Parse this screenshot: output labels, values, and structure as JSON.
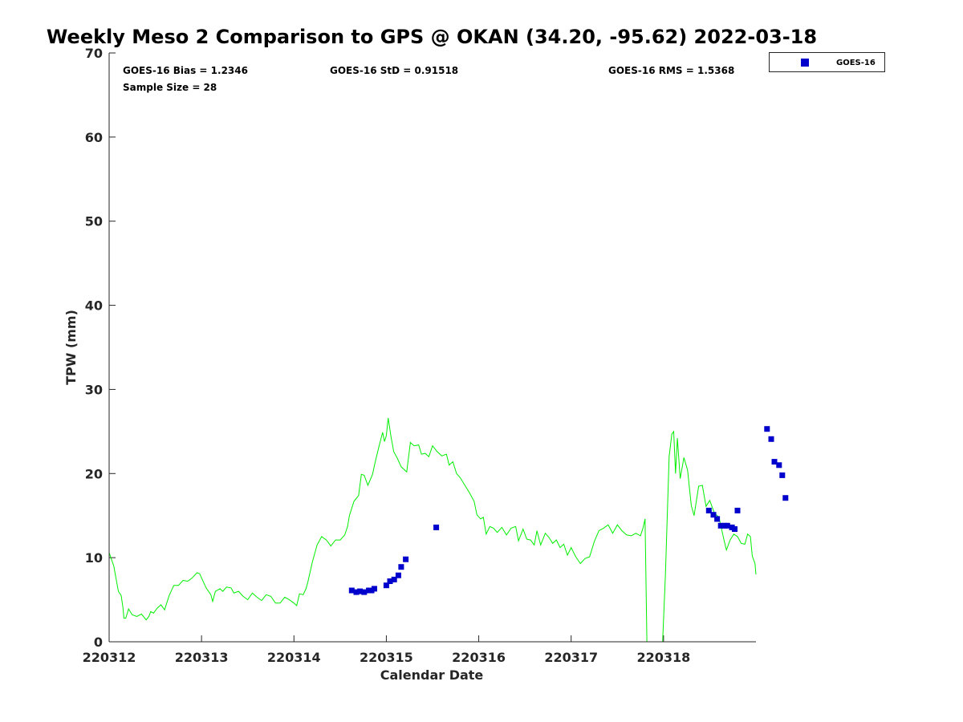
{
  "chart_data": {
    "type": "scatter",
    "title": "Weekly Meso 2 Comparison to GPS @ OKAN (34.20, -95.62) 2022-03-18",
    "xlabel": "Calendar Date",
    "ylabel": "TPW (mm)",
    "xlim": [
      "220312",
      "220319"
    ],
    "ylim": [
      0,
      70
    ],
    "yticks": [
      "0",
      "10",
      "20",
      "30",
      "40",
      "50",
      "60",
      "70"
    ],
    "xticks": [
      "220312",
      "220313",
      "220314",
      "220315",
      "220316",
      "220317",
      "220318"
    ],
    "grid": false,
    "legend_position": "top-right",
    "stats": {
      "bias": "GOES-16 Bias = 1.2346",
      "std": "GOES-16 StD = 0.91518",
      "rms": "GOES-16 RMS = 1.5368",
      "sample": "Sample Size = 28"
    },
    "series": [
      {
        "name": "GOES-16",
        "kind": "scatter",
        "color": "#0000cc",
        "marker": "square",
        "points": [
          [
            2.625,
            6.1
          ],
          [
            2.675,
            5.9
          ],
          [
            2.715,
            6.0
          ],
          [
            2.76,
            5.9
          ],
          [
            2.81,
            6.1
          ],
          [
            2.84,
            6.1
          ],
          [
            2.87,
            6.3
          ],
          [
            3.0,
            6.7
          ],
          [
            3.04,
            7.2
          ],
          [
            3.085,
            7.4
          ],
          [
            3.13,
            7.9
          ],
          [
            3.16,
            8.9
          ],
          [
            3.21,
            9.8
          ],
          [
            3.54,
            13.6
          ],
          [
            6.49,
            15.6
          ],
          [
            6.54,
            15.1
          ],
          [
            6.58,
            14.6
          ],
          [
            6.62,
            13.8
          ],
          [
            6.66,
            13.8
          ],
          [
            6.69,
            13.8
          ],
          [
            6.74,
            13.6
          ],
          [
            6.77,
            13.4
          ],
          [
            6.8,
            15.6
          ],
          [
            7.12,
            25.3
          ],
          [
            7.165,
            24.1
          ],
          [
            7.2,
            21.4
          ],
          [
            7.25,
            21.0
          ],
          [
            7.285,
            19.8
          ],
          [
            7.32,
            17.1
          ]
        ]
      },
      {
        "kind": "line",
        "color": "#00ee00",
        "points": [
          [
            0.0,
            10.6
          ],
          [
            0.05,
            9.0
          ],
          [
            0.1,
            6.0
          ],
          [
            0.13,
            5.5
          ],
          [
            0.15,
            4.0
          ],
          [
            0.16,
            2.8
          ],
          [
            0.18,
            2.8
          ],
          [
            0.21,
            3.9
          ],
          [
            0.25,
            3.2
          ],
          [
            0.3,
            3.0
          ],
          [
            0.35,
            3.3
          ],
          [
            0.4,
            2.6
          ],
          [
            0.43,
            3.0
          ],
          [
            0.45,
            3.6
          ],
          [
            0.48,
            3.4
          ],
          [
            0.52,
            4.0
          ],
          [
            0.56,
            4.4
          ],
          [
            0.6,
            3.8
          ],
          [
            0.65,
            5.5
          ],
          [
            0.7,
            6.7
          ],
          [
            0.75,
            6.7
          ],
          [
            0.8,
            7.3
          ],
          [
            0.85,
            7.2
          ],
          [
            0.9,
            7.6
          ],
          [
            0.95,
            8.2
          ],
          [
            0.98,
            8.1
          ],
          [
            1.0,
            7.6
          ],
          [
            1.05,
            6.4
          ],
          [
            1.1,
            5.6
          ],
          [
            1.12,
            4.8
          ],
          [
            1.15,
            6.0
          ],
          [
            1.2,
            6.3
          ],
          [
            1.23,
            6.0
          ],
          [
            1.27,
            6.5
          ],
          [
            1.32,
            6.4
          ],
          [
            1.35,
            5.8
          ],
          [
            1.4,
            6.0
          ],
          [
            1.45,
            5.4
          ],
          [
            1.5,
            5.0
          ],
          [
            1.55,
            5.8
          ],
          [
            1.6,
            5.3
          ],
          [
            1.65,
            4.9
          ],
          [
            1.7,
            5.6
          ],
          [
            1.75,
            5.4
          ],
          [
            1.8,
            4.6
          ],
          [
            1.85,
            4.6
          ],
          [
            1.9,
            5.3
          ],
          [
            1.95,
            5.0
          ],
          [
            2.0,
            4.6
          ],
          [
            2.03,
            4.3
          ],
          [
            2.06,
            5.7
          ],
          [
            2.1,
            5.6
          ],
          [
            2.13,
            6.3
          ],
          [
            2.15,
            7.1
          ],
          [
            2.2,
            9.5
          ],
          [
            2.25,
            11.5
          ],
          [
            2.3,
            12.5
          ],
          [
            2.35,
            12.1
          ],
          [
            2.4,
            11.4
          ],
          [
            2.45,
            12.1
          ],
          [
            2.5,
            12.1
          ],
          [
            2.55,
            12.7
          ],
          [
            2.58,
            13.7
          ],
          [
            2.6,
            15.0
          ],
          [
            2.65,
            16.7
          ],
          [
            2.7,
            17.4
          ],
          [
            2.73,
            19.9
          ],
          [
            2.76,
            19.8
          ],
          [
            2.8,
            18.6
          ],
          [
            2.85,
            19.9
          ],
          [
            2.88,
            21.4
          ],
          [
            2.92,
            23.2
          ],
          [
            2.96,
            24.9
          ],
          [
            2.98,
            23.8
          ],
          [
            3.0,
            24.5
          ],
          [
            3.02,
            26.6
          ],
          [
            3.05,
            24.4
          ],
          [
            3.08,
            22.6
          ],
          [
            3.12,
            21.8
          ],
          [
            3.16,
            20.8
          ],
          [
            3.22,
            20.2
          ],
          [
            3.26,
            23.7
          ],
          [
            3.3,
            23.3
          ],
          [
            3.35,
            23.4
          ],
          [
            3.38,
            22.3
          ],
          [
            3.42,
            22.4
          ],
          [
            3.46,
            22.0
          ],
          [
            3.5,
            23.3
          ],
          [
            3.55,
            22.6
          ],
          [
            3.6,
            22.1
          ],
          [
            3.65,
            22.3
          ],
          [
            3.68,
            21.0
          ],
          [
            3.72,
            21.4
          ],
          [
            3.76,
            20.0
          ],
          [
            3.8,
            19.5
          ],
          [
            3.85,
            18.6
          ],
          [
            3.9,
            17.7
          ],
          [
            3.95,
            16.7
          ],
          [
            3.98,
            15.1
          ],
          [
            4.02,
            14.6
          ],
          [
            4.05,
            14.8
          ],
          [
            4.08,
            12.8
          ],
          [
            4.12,
            13.7
          ],
          [
            4.16,
            13.5
          ],
          [
            4.2,
            13.0
          ],
          [
            4.25,
            13.6
          ],
          [
            4.3,
            12.7
          ],
          [
            4.35,
            13.5
          ],
          [
            4.4,
            13.7
          ],
          [
            4.43,
            12.0
          ],
          [
            4.48,
            13.4
          ],
          [
            4.52,
            12.2
          ],
          [
            4.56,
            12.1
          ],
          [
            4.6,
            11.5
          ],
          [
            4.63,
            13.2
          ],
          [
            4.67,
            11.5
          ],
          [
            4.72,
            12.9
          ],
          [
            4.76,
            12.4
          ],
          [
            4.8,
            11.7
          ],
          [
            4.84,
            12.1
          ],
          [
            4.88,
            11.2
          ],
          [
            4.92,
            11.6
          ],
          [
            4.96,
            10.3
          ],
          [
            5.0,
            11.2
          ],
          [
            5.05,
            10.1
          ],
          [
            5.1,
            9.3
          ],
          [
            5.15,
            9.9
          ],
          [
            5.2,
            10.1
          ],
          [
            5.25,
            11.9
          ],
          [
            5.3,
            13.2
          ],
          [
            5.35,
            13.5
          ],
          [
            5.4,
            13.9
          ],
          [
            5.45,
            12.9
          ],
          [
            5.5,
            13.9
          ],
          [
            5.55,
            13.2
          ],
          [
            5.6,
            12.7
          ],
          [
            5.65,
            12.6
          ],
          [
            5.7,
            12.9
          ],
          [
            5.75,
            12.6
          ],
          [
            5.78,
            13.6
          ],
          [
            5.8,
            14.6
          ],
          [
            5.82,
            0.0
          ],
          [
            5.99,
            0.0
          ],
          [
            6.02,
            8.0
          ],
          [
            6.06,
            22.0
          ],
          [
            6.09,
            24.7
          ],
          [
            6.11,
            25.0
          ],
          [
            6.13,
            20.0
          ],
          [
            6.15,
            24.2
          ],
          [
            6.18,
            19.4
          ],
          [
            6.22,
            21.9
          ],
          [
            6.26,
            20.4
          ],
          [
            6.3,
            16.2
          ],
          [
            6.33,
            15.0
          ],
          [
            6.38,
            18.5
          ],
          [
            6.42,
            18.6
          ],
          [
            6.46,
            16.1
          ],
          [
            6.5,
            16.8
          ],
          [
            6.55,
            15.3
          ],
          [
            6.6,
            14.8
          ],
          [
            6.65,
            12.3
          ],
          [
            6.68,
            10.9
          ],
          [
            6.72,
            12.1
          ],
          [
            6.76,
            12.8
          ],
          [
            6.8,
            12.5
          ],
          [
            6.84,
            11.7
          ],
          [
            6.88,
            11.6
          ],
          [
            6.91,
            12.8
          ],
          [
            6.94,
            12.5
          ],
          [
            6.96,
            10.2
          ],
          [
            6.99,
            9.3
          ],
          [
            7.0,
            8.0
          ]
        ]
      }
    ]
  }
}
